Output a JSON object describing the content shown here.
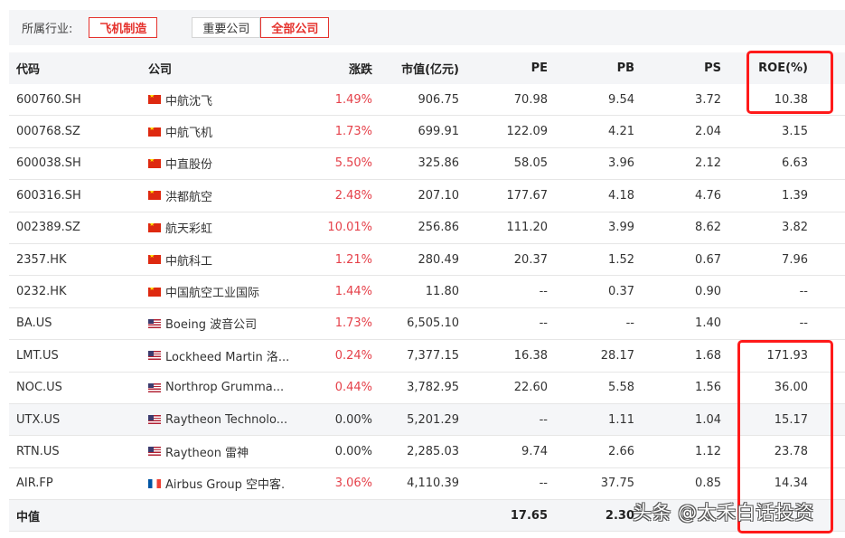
{
  "filter": {
    "label": "所属行业:",
    "industry_chip": "飞机制造",
    "scope_options": [
      "重要公司",
      "全部公司"
    ],
    "scope_selected": "全部公司"
  },
  "table": {
    "headers": {
      "code": "代码",
      "company": "公司",
      "change": "涨跌",
      "market_cap": "市值(亿元)",
      "pe": "PE",
      "pb": "PB",
      "ps": "PS",
      "roe": "ROE(%)"
    },
    "rows": [
      {
        "code": "600760.SH",
        "flag": "cn-flag-icon",
        "company": "中航沈飞",
        "change": "1.49%",
        "change_up": true,
        "market_cap": "906.75",
        "pe": "70.98",
        "pb": "9.54",
        "ps": "3.72",
        "roe": "10.38"
      },
      {
        "code": "000768.SZ",
        "flag": "cn-flag-icon",
        "company": "中航飞机",
        "change": "1.73%",
        "change_up": true,
        "market_cap": "699.91",
        "pe": "122.09",
        "pb": "4.21",
        "ps": "2.04",
        "roe": "3.15"
      },
      {
        "code": "600038.SH",
        "flag": "cn-flag-icon",
        "company": "中直股份",
        "change": "5.50%",
        "change_up": true,
        "market_cap": "325.86",
        "pe": "58.05",
        "pb": "3.96",
        "ps": "2.12",
        "roe": "6.63"
      },
      {
        "code": "600316.SH",
        "flag": "cn-flag-icon",
        "company": "洪都航空",
        "change": "2.48%",
        "change_up": true,
        "market_cap": "207.10",
        "pe": "177.67",
        "pb": "4.18",
        "ps": "4.76",
        "roe": "1.39"
      },
      {
        "code": "002389.SZ",
        "flag": "cn-flag-icon",
        "company": "航天彩虹",
        "change": "10.01%",
        "change_up": true,
        "market_cap": "256.86",
        "pe": "111.20",
        "pb": "3.99",
        "ps": "8.62",
        "roe": "3.82"
      },
      {
        "code": "2357.HK",
        "flag": "cn-flag-icon",
        "company": "中航科工",
        "change": "1.21%",
        "change_up": true,
        "market_cap": "280.49",
        "pe": "20.37",
        "pb": "1.52",
        "ps": "0.67",
        "roe": "7.96"
      },
      {
        "code": "0232.HK",
        "flag": "cn-flag-icon",
        "company": "中国航空工业国际",
        "change": "1.44%",
        "change_up": true,
        "market_cap": "11.80",
        "pe": "--",
        "pb": "0.37",
        "ps": "0.90",
        "roe": "--"
      },
      {
        "code": "BA.US",
        "flag": "us-flag-icon",
        "company": "Boeing 波音公司",
        "change": "1.73%",
        "change_up": true,
        "market_cap": "6,505.10",
        "pe": "--",
        "pb": "--",
        "ps": "1.40",
        "roe": "--"
      },
      {
        "code": "LMT.US",
        "flag": "us-flag-icon",
        "company": "Lockheed Martin 洛...",
        "change": "0.24%",
        "change_up": true,
        "market_cap": "7,377.15",
        "pe": "16.38",
        "pb": "28.17",
        "ps": "1.68",
        "roe": "171.93"
      },
      {
        "code": "NOC.US",
        "flag": "us-flag-icon",
        "company": "Northrop Grumma...",
        "change": "0.44%",
        "change_up": true,
        "market_cap": "3,782.95",
        "pe": "22.60",
        "pb": "5.58",
        "ps": "1.56",
        "roe": "36.00"
      },
      {
        "code": "UTX.US",
        "flag": "us-flag-icon",
        "company": "Raytheon Technolo...",
        "change": "0.00%",
        "change_up": false,
        "market_cap": "5,201.29",
        "pe": "--",
        "pb": "1.11",
        "ps": "1.04",
        "roe": "15.17"
      },
      {
        "code": "RTN.US",
        "flag": "us-flag-icon",
        "company": "Raytheon 雷神",
        "change": "0.00%",
        "change_up": false,
        "market_cap": "2,285.03",
        "pe": "9.74",
        "pb": "2.66",
        "ps": "1.12",
        "roe": "23.78"
      },
      {
        "code": "AIR.FP",
        "flag": "fr-flag-icon",
        "company": "Airbus Group 空中客.",
        "change": "3.06%",
        "change_up": true,
        "market_cap": "4,110.39",
        "pe": "--",
        "pb": "37.75",
        "ps": "0.85",
        "roe": "14.34"
      }
    ],
    "footer": {
      "label": "中值",
      "pe": "17.65",
      "pb": "2.30",
      "ps": "",
      "roe": ""
    }
  },
  "watermark": "头条 @太禾白话投资",
  "colors": {
    "accent_red": "#e5322d",
    "up_red": "#e5414a",
    "annotation_red": "#ff1a1a",
    "header_bg": "#f4f5f7"
  }
}
